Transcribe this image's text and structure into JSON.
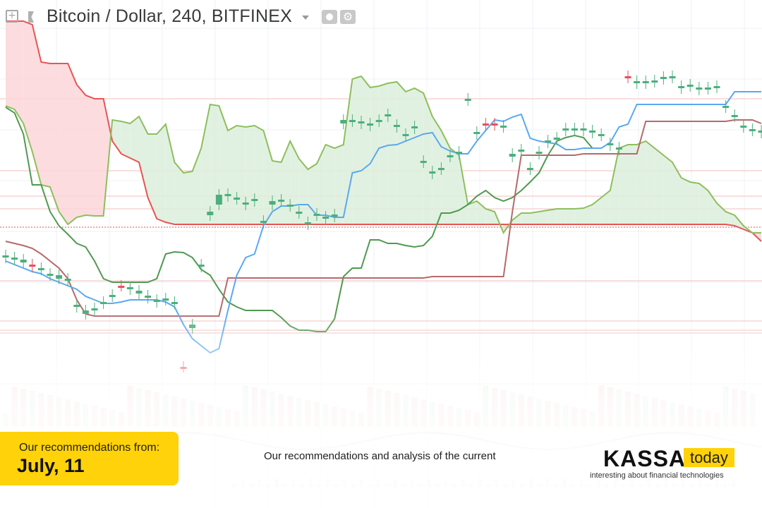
{
  "header": {
    "title": "Bitcoin / Dollar, 240, BITFINEX"
  },
  "banner": {
    "label": "Our recommendations from:",
    "date": "July, 11",
    "subtitle": "Our recommendations and analysis of the current"
  },
  "logo": {
    "brand": "KASSA",
    "badge": "today",
    "tagline": "interesting about financial technologies"
  },
  "colors": {
    "up": "#4caf7d",
    "down": "#e8505b",
    "tenkan": "#5aa9ef",
    "kijun": "#b56a6a",
    "span_a": "#8dbf5c",
    "span_b": "#e85454",
    "lagging": "#4f9a4f",
    "bearish_cloud": "#fcd6d8",
    "bullish_cloud": "#dcefdc",
    "accent": "#ffd20a"
  },
  "chart_data": {
    "type": "candlestick",
    "x": [
      0,
      1,
      2,
      3,
      4,
      5,
      6,
      7,
      8,
      9,
      10,
      11,
      12,
      13,
      14,
      15,
      16,
      17,
      18,
      19,
      20,
      21,
      22,
      23,
      24,
      25,
      26,
      27,
      28,
      29,
      30,
      31,
      32,
      33,
      34,
      35,
      36,
      37,
      38,
      39,
      40,
      41,
      42,
      43,
      44,
      45,
      46,
      47,
      48,
      49,
      50,
      51,
      52,
      53,
      54,
      55,
      56,
      57,
      58,
      59,
      60,
      61,
      62,
      63,
      64,
      65,
      66,
      67,
      68,
      69,
      70,
      71,
      72,
      73,
      74,
      75,
      76,
      77,
      78,
      79,
      80,
      81,
      82,
      83,
      84,
      85
    ],
    "ohlc": [
      [
        365,
        362,
        368,
        368
      ],
      [
        368,
        365,
        372,
        372
      ],
      [
        372,
        368,
        375,
        375
      ],
      [
        375,
        378,
        372,
        382
      ],
      [
        382,
        380,
        390,
        390
      ],
      [
        390,
        388,
        395,
        395
      ],
      [
        395,
        390,
        398,
        398
      ],
      [
        398,
        395,
        435,
        435
      ],
      [
        435,
        432,
        445,
        445
      ],
      [
        445,
        440,
        455,
        455
      ],
      [
        440,
        437,
        445,
        445
      ],
      [
        430,
        428,
        438,
        438
      ],
      [
        420,
        418,
        428,
        428
      ],
      [
        405,
        405,
        422,
        422
      ],
      [
        410,
        407,
        415,
        415
      ],
      [
        416,
        412,
        428,
        428
      ],
      [
        422,
        419,
        425,
        425
      ],
      [
        428,
        425,
        430,
        430
      ],
      [
        425,
        423,
        428,
        428
      ],
      [
        430,
        428,
        520,
        520
      ],
      [
        520,
        520,
        560,
        560
      ],
      [
        465,
        460,
        480,
        480
      ],
      [
        378,
        375,
        400,
        400
      ],
      [
        305,
        300,
        375,
        375
      ],
      [
        290,
        276,
        300,
        300
      ],
      [
        278,
        275,
        292,
        292
      ],
      [
        282,
        280,
        292,
        292
      ],
      [
        290,
        287,
        295,
        295
      ],
      [
        285,
        282,
        316,
        316
      ],
      [
        316,
        313,
        312,
        312
      ],
      [
        290,
        285,
        316,
        316
      ],
      [
        285,
        283,
        292,
        292
      ],
      [
        292,
        290,
        302,
        302
      ],
      [
        302,
        300,
        304,
        304
      ],
      [
        318,
        315,
        305,
        305
      ],
      [
        305,
        303,
        314,
        314
      ],
      [
        310,
        307,
        314,
        314
      ],
      [
        307,
        304,
        310,
        310
      ],
      [
        175,
        170,
        312,
        312
      ],
      [
        172,
        170,
        178,
        178
      ],
      [
        175,
        172,
        178,
        178
      ],
      [
        178,
        175,
        172,
        172
      ],
      [
        172,
        170,
        175,
        175
      ],
      [
        165,
        162,
        192,
        192
      ],
      [
        180,
        177,
        192,
        192
      ],
      [
        192,
        190,
        182,
        182
      ],
      [
        182,
        179,
        230,
        230
      ],
      [
        230,
        228,
        246,
        246
      ],
      [
        246,
        243,
        240,
        240
      ],
      [
        240,
        238,
        222,
        222
      ],
      [
        222,
        220,
        218,
        218
      ],
      [
        218,
        215,
        148,
        148
      ],
      [
        142,
        140,
        190,
        190
      ],
      [
        190,
        187,
        175,
        175
      ],
      [
        175,
        177,
        175,
        175
      ],
      [
        175,
        177,
        180,
        180
      ],
      [
        180,
        178,
        230,
        230
      ],
      [
        222,
        218,
        228,
        228
      ],
      [
        215,
        212,
        240,
        240
      ],
      [
        240,
        238,
        218,
        218
      ],
      [
        218,
        215,
        202,
        202
      ],
      [
        202,
        199,
        198,
        198
      ],
      [
        198,
        195,
        185,
        185
      ],
      [
        185,
        182,
        182,
        182
      ],
      [
        184,
        182,
        185,
        185
      ],
      [
        185,
        182,
        188,
        188
      ],
      [
        188,
        185,
        192,
        192
      ],
      [
        192,
        190,
        206,
        206
      ],
      [
        206,
        203,
        212,
        212
      ],
      [
        212,
        209,
        108,
        108
      ],
      [
        108,
        110,
        125,
        125
      ],
      [
        118,
        115,
        122,
        122
      ],
      [
        118,
        115,
        116,
        116
      ],
      [
        116,
        114,
        112,
        112
      ],
      [
        112,
        109,
        110,
        110
      ],
      [
        110,
        108,
        134,
        134
      ],
      [
        125,
        122,
        128,
        128
      ],
      [
        122,
        120,
        128,
        128
      ],
      [
        127,
        124,
        130,
        130
      ],
      [
        126,
        124,
        128,
        128
      ],
      [
        124,
        122,
        152,
        152
      ],
      [
        152,
        150,
        165,
        165
      ],
      [
        165,
        163,
        180,
        180
      ],
      [
        180,
        178,
        185,
        185
      ],
      [
        185,
        183,
        188,
        188
      ],
      [
        188,
        185,
        190,
        190
      ]
    ],
    "tenkan": [
      370,
      375,
      380,
      385,
      388,
      395,
      400,
      405,
      410,
      420,
      425,
      430,
      430,
      428,
      425,
      425,
      425,
      425,
      428,
      435,
      460,
      480,
      490,
      500,
      494,
      440,
      390,
      365,
      360,
      320,
      300,
      292,
      292,
      290,
      290,
      305,
      305,
      308,
      308,
      245,
      242,
      232,
      210,
      206,
      205,
      200,
      195,
      190,
      188,
      208,
      214,
      218,
      218,
      200,
      185,
      170,
      172,
      166,
      162,
      196,
      200,
      202,
      204,
      212,
      212,
      210,
      210,
      210,
      202,
      180,
      176,
      148,
      148,
      148,
      148,
      148,
      148,
      148,
      148,
      148,
      148,
      148,
      130,
      130,
      130,
      130
    ],
    "kijun": [
      342,
      345,
      348,
      352,
      360,
      370,
      380,
      395,
      425,
      445,
      448,
      448,
      448,
      448,
      448,
      448,
      448,
      448,
      448,
      448,
      448,
      448,
      448,
      448,
      448,
      394,
      394,
      394,
      394,
      394,
      394,
      394,
      394,
      394,
      394,
      394,
      394,
      394,
      394,
      394,
      394,
      394,
      394,
      394,
      394,
      394,
      394,
      394,
      392,
      392,
      392,
      392,
      392,
      392,
      392,
      392,
      392,
      300,
      220,
      220,
      220,
      220,
      220,
      220,
      220,
      218,
      218,
      218,
      218,
      218,
      218,
      218,
      172,
      172,
      172,
      172,
      172,
      172,
      172,
      172,
      172,
      172,
      170,
      170,
      170,
      175
    ],
    "span_a": [
      150,
      155,
      175,
      215,
      262,
      265,
      300,
      318,
      308,
      305,
      306,
      306,
      170,
      172,
      175,
      165,
      190,
      190,
      176,
      230,
      245,
      243,
      210,
      148,
      150,
      185,
      178,
      180,
      178,
      185,
      228,
      230,
      200,
      225,
      240,
      232,
      205,
      210,
      205,
      112,
      108,
      124,
      122,
      118,
      116,
      130,
      125,
      132,
      165,
      185,
      210,
      220,
      290,
      285,
      296,
      300,
      330,
      312,
      302,
      302,
      300,
      298,
      296,
      296,
      296,
      295,
      290,
      280,
      270,
      210,
      205,
      205,
      200,
      210,
      220,
      230,
      252,
      258,
      260,
      270,
      288,
      300,
      305,
      320,
      330,
      330
    ],
    "span_b": [
      30,
      30,
      30,
      35,
      88,
      90,
      90,
      90,
      120,
      135,
      140,
      140,
      200,
      218,
      224,
      230,
      280,
      310,
      315,
      318,
      318,
      318,
      318,
      318,
      318,
      318,
      318,
      318,
      318,
      318,
      318,
      318,
      318,
      318,
      318,
      318,
      318,
      318,
      318,
      318,
      318,
      318,
      318,
      318,
      318,
      318,
      318,
      318,
      318,
      318,
      318,
      318,
      318,
      318,
      318,
      318,
      318,
      318,
      318,
      318,
      318,
      318,
      318,
      318,
      318,
      318,
      318,
      318,
      318,
      318,
      318,
      318,
      318,
      318,
      318,
      318,
      318,
      318,
      318,
      318,
      318,
      318,
      320,
      325,
      330,
      342
    ],
    "lagging": [
      152,
      160,
      190,
      262,
      262,
      300,
      320,
      332,
      345,
      350,
      370,
      395,
      400,
      400,
      400,
      400,
      400,
      395,
      360,
      357,
      358,
      365,
      382,
      390,
      410,
      428,
      435,
      440,
      440,
      440,
      440,
      450,
      462,
      468,
      468,
      470,
      470,
      452,
      392,
      380,
      380,
      340,
      340,
      345,
      345,
      348,
      350,
      348,
      335,
      302,
      302,
      298,
      290,
      278,
      270,
      280,
      285,
      280,
      270,
      258,
      245,
      220,
      200,
      195,
      192,
      195,
      210
    ],
    "ylabel": "",
    "xlabel": ""
  }
}
